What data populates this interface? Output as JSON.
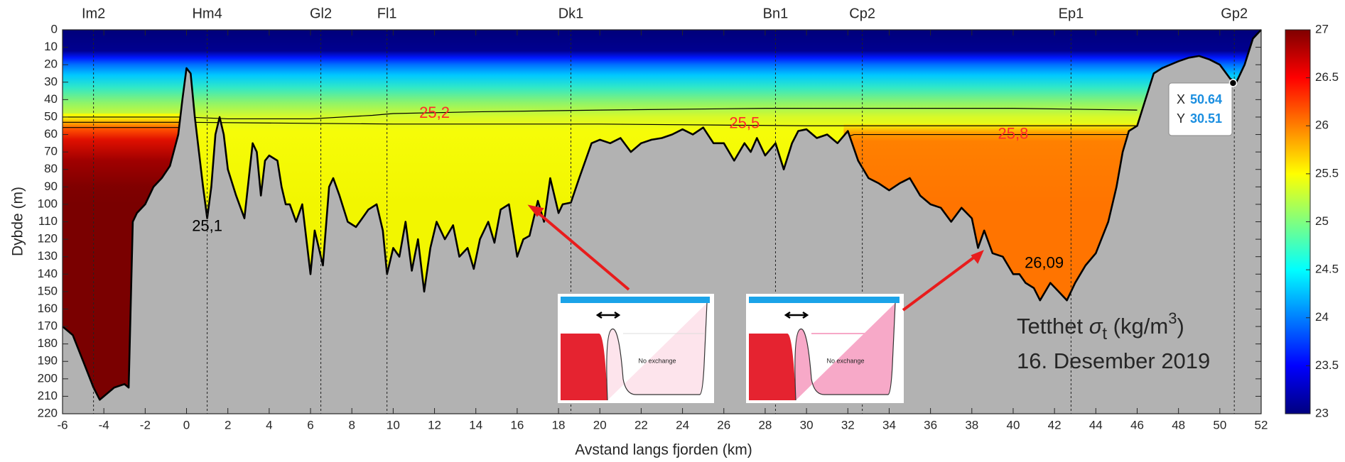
{
  "chart_data": {
    "type": "section",
    "x_label": "Avstand langs fjorden (km)",
    "y_label": "Dybde (m)",
    "title_parts": [
      "Tetthet ",
      "σ",
      "t",
      " (kg/m",
      "3",
      ")"
    ],
    "subtitle": "16. Desember 2019",
    "xlim": [
      -6,
      52
    ],
    "xticks": [
      -6,
      -4,
      -2,
      0,
      2,
      4,
      6,
      8,
      10,
      12,
      14,
      16,
      18,
      20,
      22,
      24,
      26,
      28,
      30,
      32,
      34,
      36,
      38,
      40,
      42,
      44,
      46,
      48,
      50,
      52
    ],
    "ylim": [
      0,
      220
    ],
    "y_reversed": true,
    "yticks": [
      0,
      10,
      20,
      30,
      40,
      50,
      60,
      70,
      80,
      90,
      100,
      110,
      120,
      130,
      140,
      150,
      160,
      170,
      180,
      190,
      200,
      210,
      220
    ],
    "colorbar": {
      "colormap": "jet",
      "clim": [
        23,
        27
      ],
      "ticks": [
        23,
        23.5,
        24,
        24.5,
        25,
        25.5,
        26,
        26.5,
        27
      ]
    },
    "stations": [
      {
        "name": "Im2",
        "x": -4.5
      },
      {
        "name": "Hm4",
        "x": 1
      },
      {
        "name": "Gl2",
        "x": 6.5
      },
      {
        "name": "Fl1",
        "x": 9.7
      },
      {
        "name": "Dk1",
        "x": 18.6
      },
      {
        "name": "Bn1",
        "x": 28.5
      },
      {
        "name": "Cp2",
        "x": 32.7
      },
      {
        "name": "Ep1",
        "x": 42.8
      },
      {
        "name": "Gp2",
        "x": 50.7
      }
    ],
    "bathymetry": {
      "color": "#b2b2b2",
      "x": [
        -6,
        -5.5,
        -5,
        -4.5,
        -4.2,
        -4,
        -3.5,
        -3,
        -2.8,
        -2.6,
        -2.4,
        -2,
        -1.6,
        -1.2,
        -0.8,
        -0.4,
        -0.2,
        0,
        0.2,
        0.4,
        0.8,
        1,
        1.2,
        1.4,
        1.6,
        1.8,
        2,
        2.4,
        2.8,
        3.2,
        3.4,
        3.6,
        3.8,
        4,
        4.4,
        4.6,
        4.8,
        5,
        5.3,
        5.6,
        5.8,
        6,
        6.2,
        6.6,
        6.9,
        7.1,
        7.4,
        7.8,
        8.2,
        8.5,
        8.8,
        9.2,
        9.5,
        9.7,
        10,
        10.3,
        10.6,
        10.9,
        11.2,
        11.5,
        11.8,
        12.1,
        12.5,
        12.9,
        13.2,
        13.6,
        13.9,
        14.2,
        14.6,
        14.9,
        15.2,
        15.6,
        16,
        16.3,
        16.6,
        17,
        17.3,
        17.6,
        18,
        18.2,
        18.6,
        19,
        19.3,
        19.6,
        20,
        20.5,
        21,
        21.5,
        22,
        22.5,
        23,
        23.5,
        24,
        24.5,
        25,
        25.5,
        26,
        26.5,
        27,
        27.3,
        27.6,
        28,
        28.5,
        28.9,
        29.3,
        29.6,
        30,
        30.5,
        31,
        31.5,
        32,
        32.5,
        33,
        33.5,
        34,
        34.5,
        35,
        35.5,
        36,
        36.5,
        37,
        37.5,
        38,
        38.3,
        38.6,
        39,
        39.5,
        40,
        40.3,
        40.6,
        41,
        41.3,
        41.8,
        42.2,
        42.6,
        43,
        43.5,
        44,
        44.6,
        45,
        45.3,
        45.6,
        46,
        46.4,
        46.8,
        47.2,
        47.6,
        48,
        48.5,
        49,
        49.5,
        50,
        50.5,
        50.8,
        51.2,
        51.6,
        52
      ],
      "depth": [
        170,
        175,
        190,
        205,
        212,
        210,
        205,
        203,
        205,
        110,
        105,
        100,
        90,
        85,
        78,
        60,
        40,
        22,
        25,
        50,
        90,
        108,
        90,
        60,
        50,
        60,
        80,
        95,
        108,
        65,
        70,
        95,
        75,
        72,
        75,
        90,
        100,
        100,
        110,
        100,
        120,
        140,
        115,
        135,
        90,
        85,
        95,
        110,
        113,
        108,
        103,
        100,
        115,
        140,
        125,
        130,
        110,
        138,
        120,
        150,
        125,
        110,
        120,
        112,
        130,
        125,
        137,
        120,
        110,
        122,
        103,
        100,
        130,
        120,
        118,
        98,
        110,
        85,
        105,
        100,
        99,
        85,
        75,
        65,
        63,
        65,
        62,
        70,
        65,
        63,
        62,
        60,
        57,
        60,
        56,
        65,
        65,
        75,
        65,
        70,
        62,
        72,
        65,
        80,
        65,
        58,
        57,
        62,
        60,
        65,
        58,
        75,
        85,
        88,
        92,
        88,
        85,
        95,
        100,
        102,
        110,
        102,
        108,
        125,
        115,
        128,
        130,
        140,
        140,
        145,
        148,
        155,
        145,
        150,
        155,
        145,
        135,
        128,
        110,
        90,
        70,
        58,
        55,
        40,
        25,
        22,
        20,
        18,
        16,
        15,
        17,
        20,
        28,
        30,
        20,
        5,
        0
      ]
    },
    "contours": [
      {
        "color": "#000000",
        "x": [
          -6,
          0,
          2,
          6,
          9,
          10,
          14,
          20,
          28,
          34,
          40,
          46
        ],
        "y": [
          50,
          50,
          51,
          51,
          49,
          48,
          47,
          46,
          45,
          45,
          45,
          46
        ]
      },
      {
        "color": "#000000",
        "x": [
          -6,
          0,
          10,
          20,
          30,
          40,
          46
        ],
        "y": [
          53,
          53,
          54,
          54,
          55,
          55,
          55
        ]
      },
      {
        "color": "#000000",
        "x": [
          -6,
          0
        ],
        "y": [
          56,
          56
        ]
      },
      {
        "color": "#000000",
        "x": [
          31.8,
          32.3,
          34,
          40,
          46
        ],
        "y": [
          62,
          60,
          60,
          60,
          60
        ]
      }
    ],
    "annotations": [
      {
        "text": "25,1",
        "x": 1,
        "y": 113,
        "color": "#000000"
      },
      {
        "text": "25,2",
        "x": 12,
        "y": 48,
        "color": "#ff2a2a"
      },
      {
        "text": "25,5",
        "x": 27,
        "y": 54,
        "color": "#ff2a2a"
      },
      {
        "text": "25,8",
        "x": 40,
        "y": 60,
        "color": "#ff2a2a"
      },
      {
        "text": "26,09",
        "x": 41.5,
        "y": 134,
        "color": "#000000"
      }
    ],
    "datatip": {
      "x_label": "X",
      "y_label": "Y",
      "x": 50.64,
      "y": 30.51
    },
    "insets": [
      {
        "label": "No exchange",
        "fill": "#fde4ec"
      },
      {
        "label": "No exchange",
        "fill": "#f7a9c8"
      }
    ]
  }
}
